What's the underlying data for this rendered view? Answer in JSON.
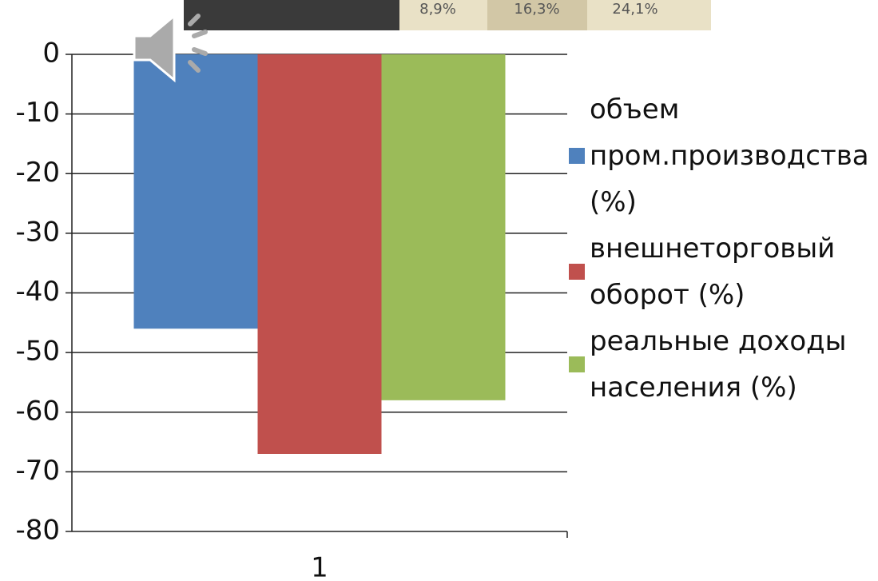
{
  "chart_data": {
    "type": "bar",
    "categories": [
      "1"
    ],
    "series": [
      {
        "name": "объем пром.производства (%)",
        "color": "#4f81bd",
        "values": [
          -46
        ]
      },
      {
        "name": "внешнеторговый оборот (%)",
        "color": "#c0504d",
        "values": [
          -67
        ]
      },
      {
        "name": "реальные доходы населения (%)",
        "color": "#9bbb59",
        "values": [
          -58
        ]
      }
    ],
    "ylim": [
      -80,
      0
    ],
    "yticks": [
      0,
      -10,
      -20,
      -30,
      -40,
      -50,
      -60,
      -70,
      -80
    ],
    "grid": true,
    "legend": "right"
  },
  "overlay": {
    "cells": [
      "8,9%",
      "16,3%",
      "24,1%"
    ]
  }
}
